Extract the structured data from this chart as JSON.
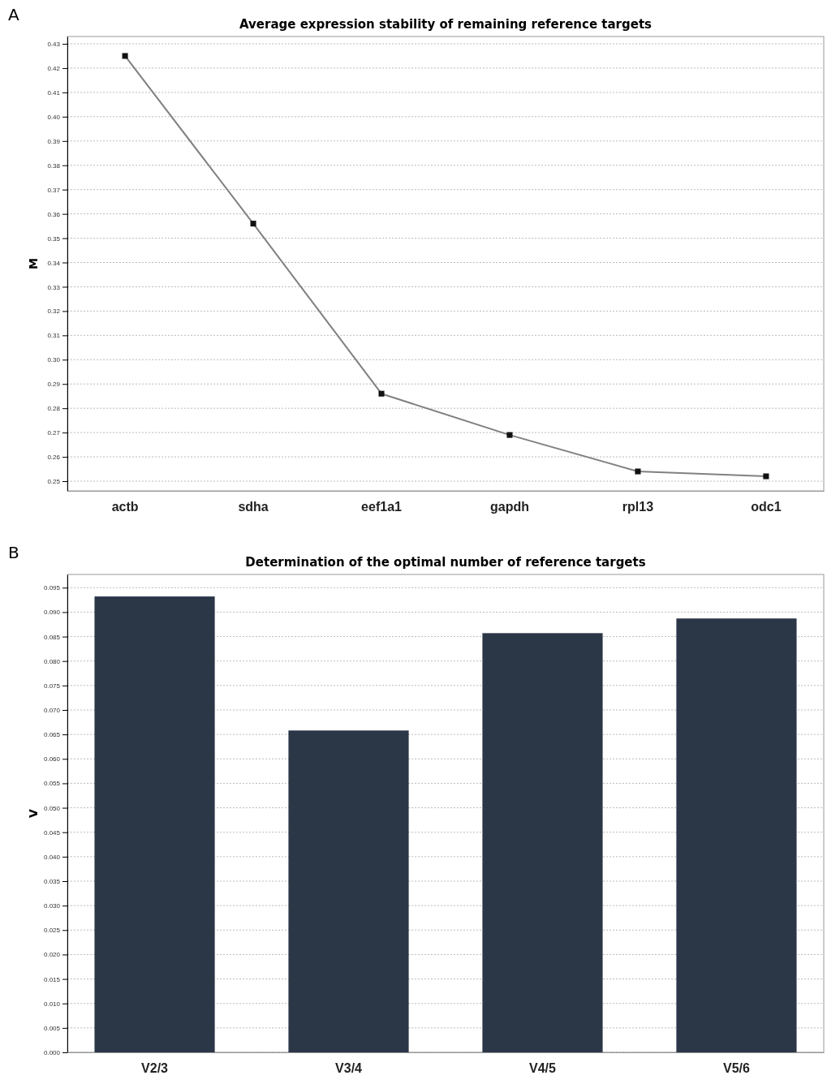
{
  "chart_data": [
    {
      "type": "line",
      "title": "Average expression stability of remaining reference targets",
      "ylabel": "M",
      "annotations": [
        "A"
      ],
      "categories": [
        "actb",
        "sdha",
        "eef1a1",
        "gapdh",
        "rpl13",
        "odc1"
      ],
      "series": [
        {
          "color": "#808080",
          "values": [
            0.425,
            0.356,
            0.286,
            0.269,
            0.254,
            0.252
          ]
        }
      ],
      "marker": "square",
      "grid": "y",
      "ylim": [
        0.246,
        0.433
      ],
      "yticks": [
        0.25,
        0.26,
        0.27,
        0.28,
        0.29,
        {
          "value": 0.3,
          "label": "0.30"
        },
        0.31,
        0.32,
        0.33,
        0.34,
        0.35,
        0.36,
        0.37,
        0.38,
        0.39,
        {
          "value": 0.4,
          "label": "0.40"
        },
        0.41,
        0.42,
        0.43
      ]
    },
    {
      "type": "bar",
      "title": "Determination of the optimal number of reference targets",
      "ylabel": "V",
      "annotations": [
        "B"
      ],
      "categories": [
        "V2/3",
        "V3/4",
        "V4/5",
        "V5/6"
      ],
      "series": [
        {
          "color": "#2b3647",
          "values": [
            0.0932,
            0.0658,
            0.0857,
            0.0887
          ]
        }
      ],
      "grid": "y",
      "ylim": [
        0,
        0.0977
      ],
      "yticks": [
        {
          "value": 0,
          "label": "0.000"
        },
        0.005,
        {
          "value": 0.01,
          "label": "0.010"
        },
        0.015,
        {
          "value": 0.02,
          "label": "0.020"
        },
        0.025,
        {
          "value": 0.03,
          "label": "0.030"
        },
        0.035,
        {
          "value": 0.04,
          "label": "0.040"
        },
        0.045,
        {
          "value": 0.05,
          "label": "0.050"
        },
        0.055,
        {
          "value": 0.06,
          "label": "0.060"
        },
        0.065,
        {
          "value": 0.07,
          "label": "0.070"
        },
        0.075,
        {
          "value": 0.08,
          "label": "0.080"
        },
        0.085,
        {
          "value": 0.09,
          "label": "0.090"
        },
        0.095
      ]
    }
  ]
}
